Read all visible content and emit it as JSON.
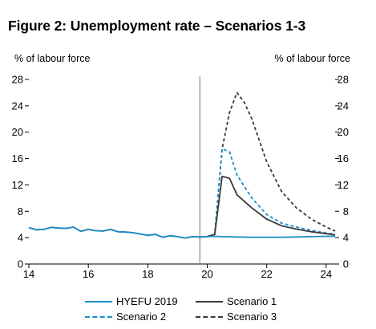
{
  "chart_data": {
    "type": "line",
    "title": "Figure 2: Unemployment rate – Scenarios 1-3",
    "ylabel_left": "% of labour force",
    "ylabel_right": "% of labour force",
    "xlim": [
      14,
      24.3
    ],
    "ylim": [
      0,
      28
    ],
    "x_ticks": [
      14,
      16,
      18,
      20,
      22,
      24
    ],
    "x_tick_labels": [
      "14",
      "16",
      "18",
      "20",
      "22",
      "24"
    ],
    "y_ticks": [
      0,
      4,
      8,
      12,
      16,
      20,
      24,
      28
    ],
    "y_tick_labels": [
      "0",
      "4",
      "8",
      "12",
      "16",
      "20",
      "24",
      "28"
    ],
    "divider_x": 19.75,
    "legend_position": "bottom",
    "series": [
      {
        "name": "HYEFU 2019",
        "color": "#1a8fc9",
        "dash": "solid",
        "points": [
          [
            14.0,
            5.5
          ],
          [
            14.25,
            5.2
          ],
          [
            14.5,
            5.25
          ],
          [
            14.75,
            5.55
          ],
          [
            15.0,
            5.45
          ],
          [
            15.25,
            5.4
          ],
          [
            15.5,
            5.6
          ],
          [
            15.75,
            4.95
          ],
          [
            16.0,
            5.25
          ],
          [
            16.25,
            5.05
          ],
          [
            16.5,
            5.0
          ],
          [
            16.75,
            5.25
          ],
          [
            17.0,
            4.9
          ],
          [
            17.25,
            4.85
          ],
          [
            17.5,
            4.75
          ],
          [
            17.75,
            4.55
          ],
          [
            18.0,
            4.35
          ],
          [
            18.25,
            4.5
          ],
          [
            18.5,
            4.05
          ],
          [
            18.75,
            4.3
          ],
          [
            19.0,
            4.15
          ],
          [
            19.25,
            3.95
          ],
          [
            19.5,
            4.15
          ],
          [
            19.75,
            4.1
          ],
          [
            20.0,
            4.15
          ],
          [
            20.25,
            4.2
          ],
          [
            20.5,
            4.15
          ],
          [
            21.0,
            4.1
          ],
          [
            21.5,
            4.05
          ],
          [
            22.0,
            4.05
          ],
          [
            22.5,
            4.05
          ],
          [
            23.0,
            4.1
          ],
          [
            23.5,
            4.15
          ],
          [
            24.0,
            4.2
          ],
          [
            24.3,
            4.2
          ]
        ]
      },
      {
        "name": "Scenario 1",
        "color": "#3a3a3a",
        "dash": "solid",
        "points": [
          [
            14.0,
            5.5
          ],
          [
            14.25,
            5.2
          ],
          [
            14.5,
            5.25
          ],
          [
            14.75,
            5.55
          ],
          [
            15.0,
            5.45
          ],
          [
            15.25,
            5.4
          ],
          [
            15.5,
            5.6
          ],
          [
            15.75,
            4.95
          ],
          [
            16.0,
            5.25
          ],
          [
            16.25,
            5.05
          ],
          [
            16.5,
            5.0
          ],
          [
            16.75,
            5.25
          ],
          [
            17.0,
            4.9
          ],
          [
            17.25,
            4.85
          ],
          [
            17.5,
            4.75
          ],
          [
            17.75,
            4.55
          ],
          [
            18.0,
            4.35
          ],
          [
            18.25,
            4.5
          ],
          [
            18.5,
            4.05
          ],
          [
            18.75,
            4.3
          ],
          [
            19.0,
            4.15
          ],
          [
            19.25,
            3.95
          ],
          [
            19.5,
            4.15
          ],
          [
            19.75,
            4.1
          ],
          [
            20.0,
            4.15
          ],
          [
            20.25,
            4.5
          ],
          [
            20.5,
            13.3
          ],
          [
            20.75,
            13.0
          ],
          [
            21.0,
            10.5
          ],
          [
            21.5,
            8.5
          ],
          [
            22.0,
            6.8
          ],
          [
            22.5,
            5.8
          ],
          [
            23.0,
            5.3
          ],
          [
            23.5,
            4.9
          ],
          [
            24.0,
            4.6
          ],
          [
            24.3,
            4.4
          ]
        ]
      },
      {
        "name": "Scenario 2",
        "color": "#1a8fc9",
        "dash": "dashed",
        "points": [
          [
            20.0,
            4.15
          ],
          [
            20.25,
            4.5
          ],
          [
            20.5,
            17.5
          ],
          [
            20.75,
            17.0
          ],
          [
            21.0,
            13.5
          ],
          [
            21.5,
            10.0
          ],
          [
            22.0,
            7.5
          ],
          [
            22.5,
            6.2
          ],
          [
            23.0,
            5.6
          ],
          [
            23.5,
            5.1
          ],
          [
            24.0,
            4.7
          ],
          [
            24.3,
            4.5
          ]
        ]
      },
      {
        "name": "Scenario 3",
        "color": "#3a3a3a",
        "dash": "dashed",
        "points": [
          [
            20.0,
            4.15
          ],
          [
            20.25,
            4.5
          ],
          [
            20.5,
            17.5
          ],
          [
            20.75,
            23.0
          ],
          [
            21.0,
            26.0
          ],
          [
            21.25,
            24.5
          ],
          [
            21.5,
            22.0
          ],
          [
            22.0,
            15.5
          ],
          [
            22.5,
            11.0
          ],
          [
            23.0,
            8.5
          ],
          [
            23.5,
            6.8
          ],
          [
            24.0,
            5.6
          ],
          [
            24.3,
            5.0
          ]
        ]
      }
    ]
  }
}
